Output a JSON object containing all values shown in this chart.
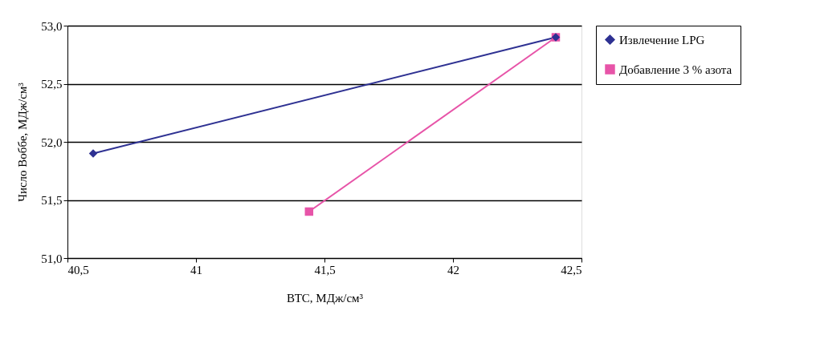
{
  "chart_data": {
    "type": "line",
    "xlabel": "ВТС, МДж/см³",
    "ylabel": "Число Воббе, МДж/см³",
    "series": [
      {
        "name": "Извлечение LPG",
        "color": "#2e3192",
        "marker": "diamond",
        "x": [
          40.6,
          42.4
        ],
        "values": [
          51.9,
          52.9
        ]
      },
      {
        "name": "Добавление 3 % азота",
        "color": "#e754a8",
        "marker": "square",
        "x": [
          41.44,
          42.4
        ],
        "values": [
          51.4,
          52.9
        ]
      }
    ],
    "xlim": [
      40.5,
      42.5
    ],
    "xticks": [
      {
        "value": 40.5,
        "label": "40,5"
      },
      41,
      {
        "value": 41.5,
        "label": "41,5"
      },
      42,
      {
        "value": 42.5,
        "label": "42,5"
      }
    ],
    "ylim": [
      51,
      53
    ],
    "yticks": [
      {
        "value": 51,
        "label": "51,0"
      },
      {
        "value": 51.5,
        "label": "51,5"
      },
      {
        "value": 52,
        "label": "52,0"
      },
      {
        "value": 52.5,
        "label": "52,5"
      },
      {
        "value": 53,
        "label": "53,0"
      }
    ],
    "grid": "y",
    "legend": "right",
    "line_style": "solid"
  }
}
